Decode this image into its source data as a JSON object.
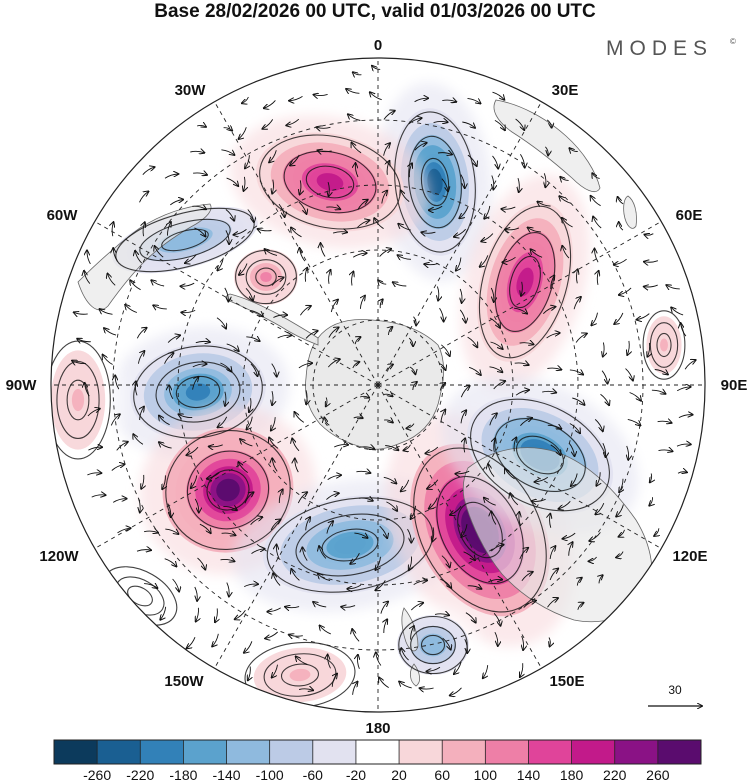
{
  "title": "Base 28/02/2026 00 UTC, valid 01/03/2026 00 UTC",
  "logo": {
    "text": "MODES",
    "mark": "©"
  },
  "longitude_labels": {
    "lon_0": "0",
    "lon_30e": "30E",
    "lon_60e": "60E",
    "lon_90e": "90E",
    "lon_120e": "120E",
    "lon_150e": "150E",
    "lon_180": "180",
    "lon_150w": "150W",
    "lon_120w": "120W",
    "lon_90w": "90W",
    "lon_60w": "60W",
    "lon_30w": "30W"
  },
  "reference_vector": {
    "label": "30"
  },
  "colorbar": {
    "ticks": [
      "-260",
      "-220",
      "-180",
      "-140",
      "-100",
      "-60",
      "-20",
      "20",
      "60",
      "100",
      "140",
      "180",
      "220",
      "260"
    ],
    "colors": [
      "#0c3a5c",
      "#1a5f92",
      "#3281b8",
      "#5ba2cd",
      "#8fbade",
      "#bccbe6",
      "#e2e2f0",
      "#ffffff",
      "#f8d7da",
      "#f4b0bd",
      "#ee7fa7",
      "#e0449a",
      "#c21a8a",
      "#8a1285",
      "#5a0c6e"
    ]
  },
  "anomalies": [
    {
      "id": "low-0e",
      "value": -240
    },
    {
      "id": "high-30e",
      "value": 200
    },
    {
      "id": "low-45w",
      "value": -140
    },
    {
      "id": "high-20w",
      "value": 200
    },
    {
      "id": "high-45w",
      "value": 100
    },
    {
      "id": "low-90w",
      "value": -200
    },
    {
      "id": "high-120w",
      "value": 260
    },
    {
      "id": "low-165w",
      "value": -180
    },
    {
      "id": "high-155e",
      "value": 300
    },
    {
      "id": "low-115e",
      "value": -220
    },
    {
      "id": "low-170e",
      "value": -140
    },
    {
      "id": "high-150w",
      "value": 60
    },
    {
      "id": "high-90w",
      "value": 60
    },
    {
      "id": "high-75e",
      "value": 60
    },
    {
      "id": "low-120w-edge",
      "value": -20
    }
  ],
  "colors": {
    "land": "#e8e8e8",
    "coast": "#666666",
    "grid": "#222222",
    "vector": "#111111"
  }
}
